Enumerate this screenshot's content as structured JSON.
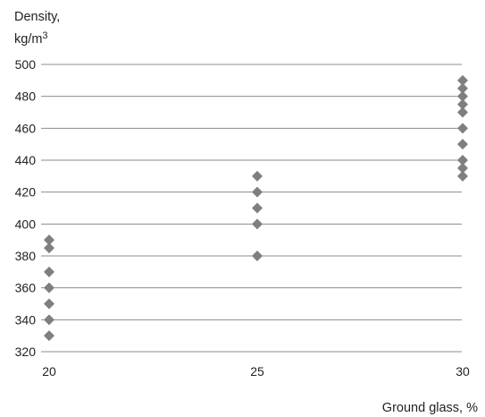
{
  "chart_data": {
    "type": "scatter",
    "title": "",
    "ylabel_line1": "Density,",
    "ylabel_line2_base": "kg/m",
    "ylabel_line2_sup": "3",
    "xlabel": "Ground glass, %",
    "xlim": [
      20,
      30
    ],
    "ylim": [
      320,
      500
    ],
    "x_ticks": [
      "20",
      "25",
      "30"
    ],
    "y_ticks": [
      "320",
      "340",
      "360",
      "380",
      "400",
      "420",
      "440",
      "460",
      "480",
      "500"
    ],
    "grid": "horizontal",
    "legend": "none",
    "marker": "diamond",
    "marker_color": "#7f7f7f",
    "series": [
      {
        "points": [
          {
            "x": 20,
            "y": 330
          },
          {
            "x": 20,
            "y": 340
          },
          {
            "x": 20,
            "y": 350
          },
          {
            "x": 20,
            "y": 360
          },
          {
            "x": 20,
            "y": 370
          },
          {
            "x": 20,
            "y": 385
          },
          {
            "x": 20,
            "y": 390
          },
          {
            "x": 25,
            "y": 380
          },
          {
            "x": 25,
            "y": 400
          },
          {
            "x": 25,
            "y": 410
          },
          {
            "x": 25,
            "y": 420
          },
          {
            "x": 25,
            "y": 430
          },
          {
            "x": 30,
            "y": 430
          },
          {
            "x": 30,
            "y": 435
          },
          {
            "x": 30,
            "y": 440
          },
          {
            "x": 30,
            "y": 450
          },
          {
            "x": 30,
            "y": 460
          },
          {
            "x": 30,
            "y": 470
          },
          {
            "x": 30,
            "y": 475
          },
          {
            "x": 30,
            "y": 480
          },
          {
            "x": 30,
            "y": 485
          },
          {
            "x": 30,
            "y": 490
          }
        ]
      }
    ]
  }
}
